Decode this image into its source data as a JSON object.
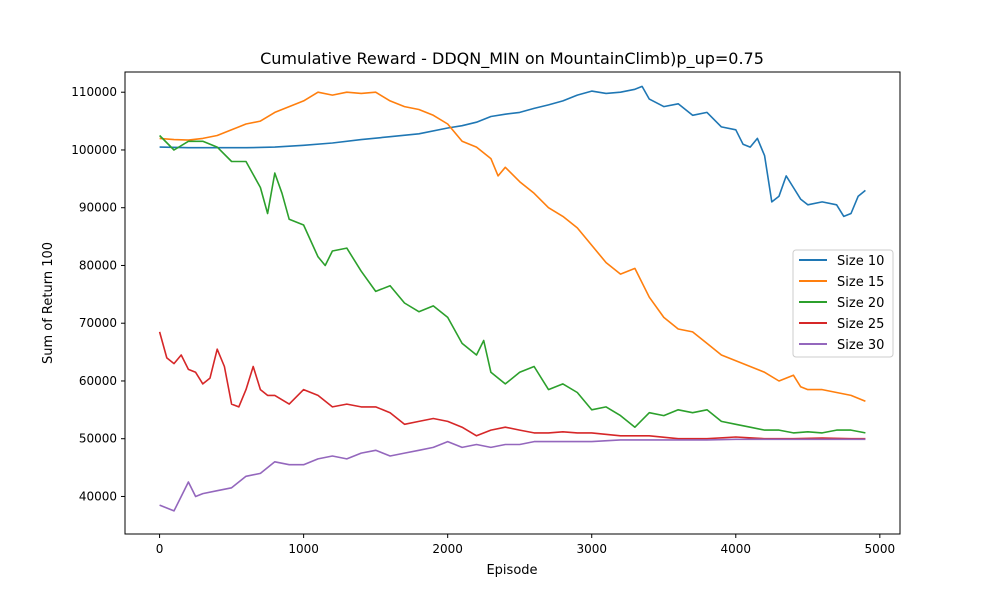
{
  "chart_data": {
    "type": "line",
    "title": "Cumulative Reward - DDQN_MIN on MountainClimb)p_up=0.75",
    "xlabel": "Episode",
    "ylabel": "Sum of Return 100",
    "xlim": [
      -240,
      5140
    ],
    "ylim": [
      33500,
      113500
    ],
    "x_ticks": [
      0,
      1000,
      2000,
      3000,
      4000,
      5000
    ],
    "y_ticks": [
      40000,
      50000,
      60000,
      70000,
      80000,
      90000,
      100000,
      110000
    ],
    "grid": false,
    "legend_position": "center-right",
    "series": [
      {
        "name": "Size 10",
        "color": "#1f77b4",
        "x": [
          0,
          200,
          400,
          600,
          800,
          1000,
          1200,
          1400,
          1600,
          1800,
          2000,
          2100,
          2200,
          2300,
          2400,
          2500,
          2600,
          2700,
          2800,
          2900,
          3000,
          3100,
          3200,
          3300,
          3350,
          3400,
          3500,
          3600,
          3700,
          3800,
          3900,
          4000,
          4050,
          4100,
          4150,
          4200,
          4250,
          4300,
          4350,
          4400,
          4450,
          4500,
          4600,
          4700,
          4750,
          4800,
          4850,
          4900
        ],
        "y": [
          100500,
          100400,
          100400,
          100400,
          100500,
          100800,
          101200,
          101800,
          102300,
          102800,
          103800,
          104200,
          104800,
          105800,
          106200,
          106500,
          107200,
          107800,
          108500,
          109500,
          110200,
          109800,
          110000,
          110500,
          111000,
          108800,
          107500,
          108000,
          106000,
          106500,
          104000,
          103500,
          101000,
          100500,
          102000,
          99000,
          91000,
          92000,
          95500,
          93500,
          91500,
          90500,
          91000,
          90500,
          88500,
          89000,
          92000,
          93000
        ]
      },
      {
        "name": "Size 15",
        "color": "#ff7f0e",
        "x": [
          0,
          100,
          200,
          300,
          400,
          500,
          600,
          700,
          800,
          900,
          1000,
          1100,
          1200,
          1300,
          1400,
          1500,
          1600,
          1700,
          1800,
          1900,
          2000,
          2100,
          2200,
          2300,
          2350,
          2400,
          2500,
          2600,
          2700,
          2800,
          2900,
          3000,
          3100,
          3200,
          3300,
          3400,
          3500,
          3600,
          3700,
          3800,
          3900,
          4000,
          4100,
          4200,
          4300,
          4400,
          4450,
          4500,
          4600,
          4700,
          4800,
          4900
        ],
        "y": [
          102000,
          101800,
          101700,
          102000,
          102500,
          103500,
          104500,
          105000,
          106500,
          107500,
          108500,
          110000,
          109500,
          110000,
          109800,
          110000,
          108500,
          107500,
          107000,
          106000,
          104500,
          101500,
          100500,
          98500,
          95500,
          97000,
          94500,
          92500,
          90000,
          88500,
          86500,
          83500,
          80500,
          78500,
          79500,
          74500,
          71000,
          69000,
          68500,
          66500,
          64500,
          63500,
          62500,
          61500,
          60000,
          61000,
          59000,
          58500,
          58500,
          58000,
          57500,
          56500
        ]
      },
      {
        "name": "Size 20",
        "color": "#2ca02c",
        "x": [
          0,
          100,
          200,
          300,
          400,
          500,
          600,
          700,
          750,
          800,
          850,
          900,
          1000,
          1100,
          1150,
          1200,
          1300,
          1400,
          1500,
          1600,
          1700,
          1800,
          1900,
          2000,
          2100,
          2200,
          2250,
          2300,
          2400,
          2500,
          2600,
          2700,
          2800,
          2900,
          3000,
          3100,
          3200,
          3300,
          3400,
          3500,
          3600,
          3700,
          3800,
          3900,
          4000,
          4100,
          4200,
          4300,
          4400,
          4500,
          4600,
          4700,
          4800,
          4900
        ],
        "y": [
          102500,
          100000,
          101500,
          101500,
          100500,
          98000,
          98000,
          93500,
          89000,
          96000,
          92500,
          88000,
          87000,
          81500,
          80000,
          82500,
          83000,
          79000,
          75500,
          76500,
          73500,
          72000,
          73000,
          71000,
          66500,
          64500,
          67000,
          61500,
          59500,
          61500,
          62500,
          58500,
          59500,
          58000,
          55000,
          55500,
          54000,
          52000,
          54500,
          54000,
          55000,
          54500,
          55000,
          53000,
          52500,
          52000,
          51500,
          51500,
          51000,
          51200,
          51000,
          51500,
          51500,
          51000
        ]
      },
      {
        "name": "Size 25",
        "color": "#d62728",
        "x": [
          0,
          50,
          100,
          150,
          200,
          250,
          300,
          350,
          400,
          450,
          500,
          550,
          600,
          650,
          700,
          750,
          800,
          900,
          1000,
          1100,
          1200,
          1300,
          1400,
          1500,
          1600,
          1700,
          1800,
          1900,
          2000,
          2100,
          2200,
          2300,
          2400,
          2500,
          2600,
          2700,
          2800,
          2900,
          3000,
          3200,
          3400,
          3600,
          3800,
          4000,
          4200,
          4400,
          4600,
          4800,
          4900
        ],
        "y": [
          68500,
          64000,
          63000,
          64500,
          62000,
          61500,
          59500,
          60500,
          65500,
          62500,
          56000,
          55500,
          58500,
          62500,
          58500,
          57500,
          57500,
          56000,
          58500,
          57500,
          55500,
          56000,
          55500,
          55500,
          54500,
          52500,
          53000,
          53500,
          53000,
          52000,
          50500,
          51500,
          52000,
          51500,
          51000,
          51000,
          51200,
          51000,
          51000,
          50500,
          50500,
          50000,
          50000,
          50300,
          50000,
          50000,
          50100,
          50000,
          50000
        ]
      },
      {
        "name": "Size 30",
        "color": "#9467bd",
        "x": [
          0,
          50,
          100,
          150,
          200,
          250,
          300,
          400,
          500,
          600,
          700,
          800,
          900,
          1000,
          1100,
          1200,
          1300,
          1400,
          1500,
          1600,
          1700,
          1800,
          1900,
          2000,
          2100,
          2200,
          2300,
          2400,
          2500,
          2600,
          2800,
          3000,
          3200,
          3400,
          3600,
          3800,
          4000,
          4200,
          4400,
          4600,
          4800,
          4900
        ],
        "y": [
          38500,
          38000,
          37500,
          40000,
          42500,
          40000,
          40500,
          41000,
          41500,
          43500,
          44000,
          46000,
          45500,
          45500,
          46500,
          47000,
          46500,
          47500,
          48000,
          47000,
          47500,
          48000,
          48500,
          49500,
          48500,
          49000,
          48500,
          49000,
          49000,
          49500,
          49500,
          49500,
          49800,
          49800,
          49800,
          49800,
          49900,
          49900,
          49900,
          49900,
          49900,
          49900
        ]
      }
    ]
  }
}
